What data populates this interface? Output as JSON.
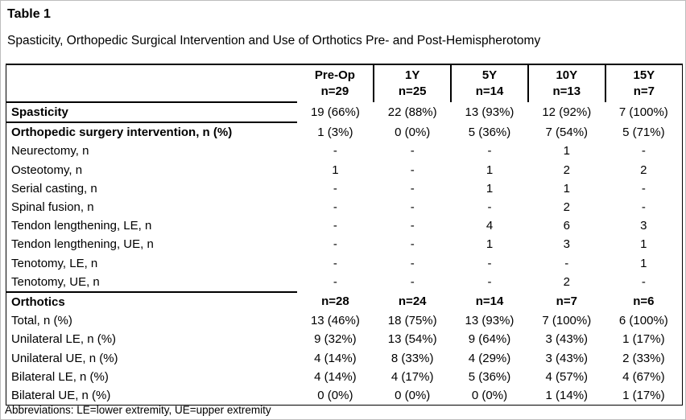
{
  "page": {
    "table_label": "Table 1",
    "title": "Spasticity, Orthopedic Surgical Intervention and Use of Orthotics Pre- and Post-Hemispherotomy",
    "footnote": "Abbreviations: LE=lower extremity, UE=upper extremity"
  },
  "table": {
    "columns": [
      {
        "label": "Pre-Op",
        "n": "n=29"
      },
      {
        "label": "1Y",
        "n": "n=25"
      },
      {
        "label": "5Y",
        "n": "n=14"
      },
      {
        "label": "10Y",
        "n": "n=13"
      },
      {
        "label": "15Y",
        "n": "n=7"
      }
    ],
    "rows": [
      {
        "label": "Spasticity",
        "bold": true,
        "section_end": true,
        "values": [
          "19 (66%)",
          "22 (88%)",
          "13 (93%)",
          "12 (92%)",
          "7 (100%)"
        ]
      },
      {
        "label": "Orthopedic surgery intervention, n (%)",
        "bold": true,
        "values": [
          "1 (3%)",
          "0 (0%)",
          "5 (36%)",
          "7 (54%)",
          "5 (71%)"
        ]
      },
      {
        "label": "Neurectomy, n",
        "values": [
          "-",
          "-",
          "-",
          "1",
          "-"
        ]
      },
      {
        "label": "Osteotomy, n",
        "values": [
          "1",
          "-",
          "1",
          "2",
          "2"
        ]
      },
      {
        "label": "Serial casting, n",
        "values": [
          "-",
          "-",
          "1",
          "1",
          "-"
        ]
      },
      {
        "label": "Spinal fusion, n",
        "values": [
          "-",
          "-",
          "-",
          "2",
          "-"
        ]
      },
      {
        "label": "Tendon lengthening, LE, n",
        "values": [
          "-",
          "-",
          "4",
          "6",
          "3"
        ]
      },
      {
        "label": "Tendon lengthening, UE, n",
        "values": [
          "-",
          "-",
          "1",
          "3",
          "1"
        ]
      },
      {
        "label": "Tenotomy, LE, n",
        "values": [
          "-",
          "-",
          "-",
          "-",
          "1"
        ]
      },
      {
        "label": "Tenotomy, UE, n",
        "section_end": true,
        "values": [
          "-",
          "-",
          "-",
          "2",
          "-"
        ]
      },
      {
        "label": "Orthotics",
        "bold": true,
        "bold_values": true,
        "values": [
          "n=28",
          "n=24",
          "n=14",
          "n=7",
          "n=6"
        ]
      },
      {
        "label": "Total, n (%)",
        "values": [
          "13 (46%)",
          "18 (75%)",
          "13 (93%)",
          "7 (100%)",
          "6 (100%)"
        ]
      },
      {
        "label": "Unilateral LE, n (%)",
        "values": [
          "9 (32%)",
          "13 (54%)",
          "9 (64%)",
          "3 (43%)",
          "1 (17%)"
        ]
      },
      {
        "label": "Unilateral UE, n (%)",
        "values": [
          "4 (14%)",
          "8 (33%)",
          "4 (29%)",
          "3 (43%)",
          "2 (33%)"
        ]
      },
      {
        "label": "Bilateral LE, n (%)",
        "values": [
          "4 (14%)",
          "4 (17%)",
          "5 (36%)",
          "4 (57%)",
          "4 (67%)"
        ]
      },
      {
        "label": "Bilateral UE, n (%)",
        "values": [
          "0 (0%)",
          "0 (0%)",
          "0 (0%)",
          "1 (14%)",
          "1 (17%)"
        ]
      }
    ]
  },
  "colors": {
    "text": "#000000",
    "background": "#ffffff",
    "table_border": "#000000"
  }
}
